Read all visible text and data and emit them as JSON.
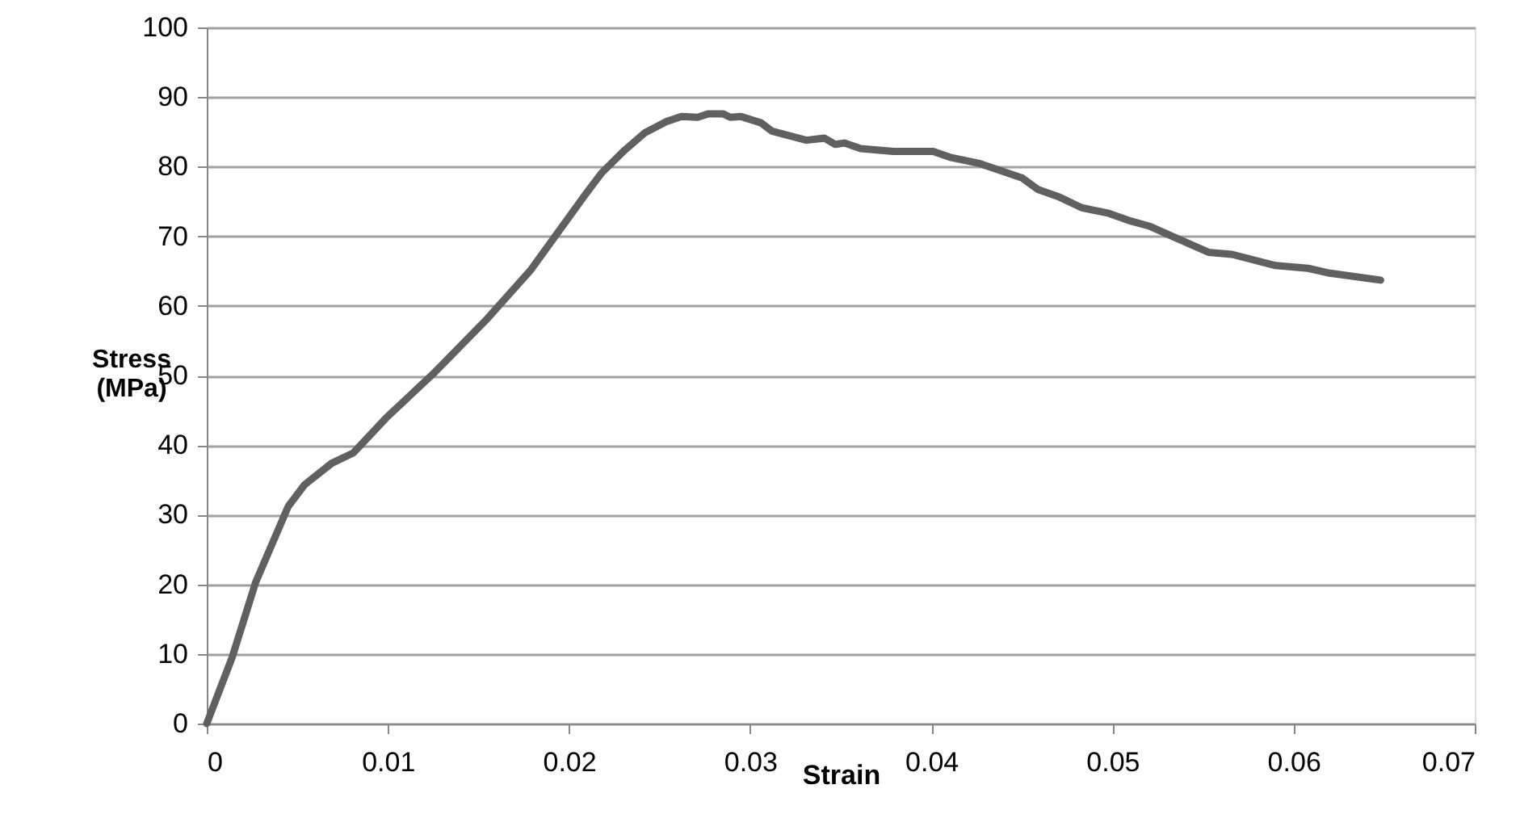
{
  "chart_data": {
    "type": "line",
    "xlabel": "Strain",
    "ylabel": "Stress (MPa)",
    "xlim": [
      0,
      0.07
    ],
    "xticks": [
      0,
      0.01,
      0.02,
      0.03,
      0.04,
      0.05,
      0.06,
      0.07
    ],
    "ylim": [
      0,
      100
    ],
    "yticks": [
      0,
      10,
      20,
      30,
      40,
      50,
      60,
      70,
      80,
      90,
      100
    ],
    "grid": "y",
    "marker": "none",
    "line_style": "solid",
    "series": [
      {
        "color": "#606060",
        "x": [
          0,
          0.0014,
          0.0027,
          0.0045,
          0.0054,
          0.0069,
          0.0081,
          0.0099,
          0.0126,
          0.0155,
          0.0179,
          0.0194,
          0.0209,
          0.0218,
          0.023,
          0.0242,
          0.0254,
          0.0262,
          0.0271,
          0.0277,
          0.0285,
          0.0289,
          0.0295,
          0.0306,
          0.0312,
          0.0331,
          0.0341,
          0.0347,
          0.0352,
          0.0361,
          0.0379,
          0.0401,
          0.0411,
          0.0426,
          0.045,
          0.0459,
          0.0471,
          0.0483,
          0.0498,
          0.051,
          0.0521,
          0.0533,
          0.0553,
          0.0566,
          0.059,
          0.0608,
          0.062,
          0.0648
        ],
        "values": [
          0,
          9.5,
          20.3,
          31.2,
          34.3,
          37.4,
          38.9,
          43.9,
          50.5,
          58.2,
          65.2,
          70.6,
          76,
          79.1,
          82.2,
          84.9,
          86.5,
          87.2,
          87.1,
          87.6,
          87.6,
          87.1,
          87.2,
          86.3,
          85.1,
          83.8,
          84.1,
          83.2,
          83.4,
          82.6,
          82.2,
          82.2,
          81.3,
          80.5,
          78.4,
          76.7,
          75.6,
          74.1,
          73.3,
          72.2,
          71.4,
          70,
          67.7,
          67.4,
          65.8,
          65.4,
          64.7,
          63.7
        ]
      }
    ]
  }
}
